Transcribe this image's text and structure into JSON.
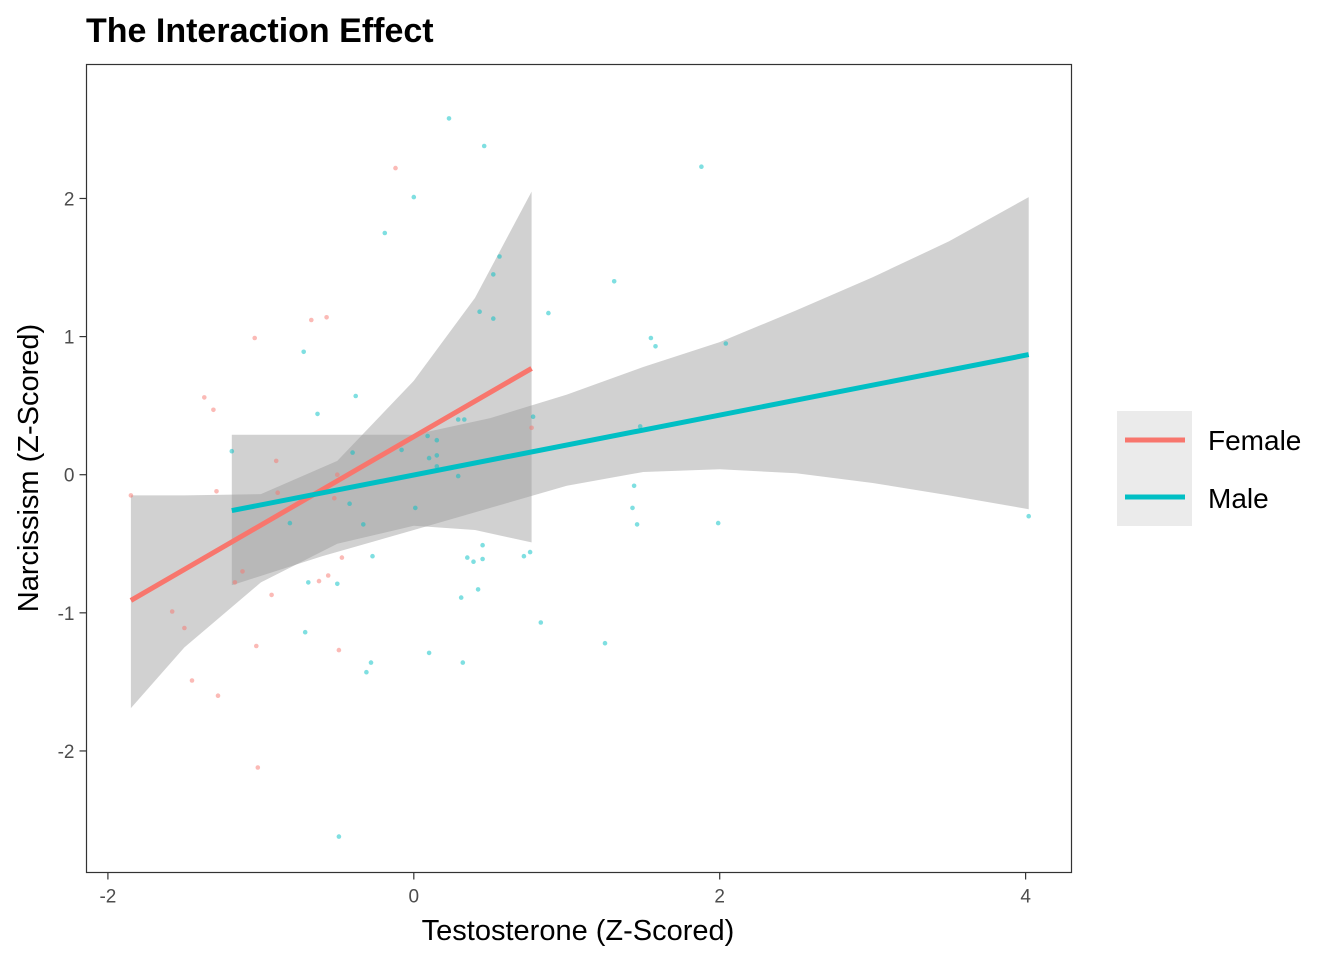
{
  "chart_data": {
    "type": "scatter",
    "title": "The Interaction Effect",
    "xlabel": "Testosterone (Z-Scored)",
    "ylabel": "Narcissism (Z-Scored)",
    "xlim": [
      -2.14,
      4.3
    ],
    "ylim": [
      -2.88,
      2.97
    ],
    "xticks": [
      -2,
      0,
      2,
      4
    ],
    "yticks": [
      -2,
      -1,
      0,
      1,
      2
    ],
    "grid": false,
    "legend_position": "right",
    "series": [
      {
        "name": "Female",
        "color": "#F8766D",
        "points": [
          [
            -1.85,
            -0.15
          ],
          [
            -1.58,
            -0.99
          ],
          [
            -1.5,
            -1.11
          ],
          [
            -1.45,
            -1.49
          ],
          [
            -1.37,
            0.56
          ],
          [
            -1.31,
            0.47
          ],
          [
            -1.29,
            -0.12
          ],
          [
            -1.28,
            -1.6
          ],
          [
            -1.17,
            -0.78
          ],
          [
            -1.12,
            -0.7
          ],
          [
            -1.04,
            0.99
          ],
          [
            -1.03,
            -1.24
          ],
          [
            -1.02,
            -2.12
          ],
          [
            -0.93,
            -0.87
          ],
          [
            -0.9,
            0.1
          ],
          [
            -0.89,
            -0.13
          ],
          [
            -0.67,
            1.12
          ],
          [
            -0.62,
            -0.77
          ],
          [
            -0.57,
            1.14
          ],
          [
            -0.56,
            -0.73
          ],
          [
            -0.52,
            -0.17
          ],
          [
            -0.5,
            0.0
          ],
          [
            -0.49,
            -1.27
          ],
          [
            -0.47,
            -0.6
          ],
          [
            -0.12,
            2.22
          ],
          [
            0.77,
            0.34
          ]
        ],
        "fit": {
          "x": [
            -1.85,
            0.77
          ],
          "y": [
            -0.91,
            0.77
          ]
        },
        "ci": {
          "x": [
            -1.85,
            -1.5,
            -1.0,
            -0.5,
            0.0,
            0.4,
            0.77
          ],
          "lower": [
            -1.69,
            -1.25,
            -0.78,
            -0.5,
            -0.37,
            -0.4,
            -0.49
          ],
          "upper": [
            -0.15,
            -0.15,
            -0.14,
            0.1,
            0.68,
            1.28,
            2.05
          ]
        }
      },
      {
        "name": "Male",
        "color": "#00BFC4",
        "points": [
          [
            -1.19,
            0.17
          ],
          [
            -0.81,
            -0.35
          ],
          [
            -0.72,
            0.89
          ],
          [
            -0.71,
            -1.14
          ],
          [
            -0.69,
            -0.78
          ],
          [
            -0.63,
            0.44
          ],
          [
            -0.5,
            -0.79
          ],
          [
            -0.49,
            -2.62
          ],
          [
            -0.42,
            -0.21
          ],
          [
            -0.4,
            0.16
          ],
          [
            -0.38,
            0.57
          ],
          [
            -0.33,
            -0.36
          ],
          [
            -0.31,
            -1.43
          ],
          [
            -0.28,
            -1.36
          ],
          [
            -0.27,
            -0.59
          ],
          [
            -0.19,
            1.75
          ],
          [
            -0.08,
            0.18
          ],
          [
            0.0,
            2.01
          ],
          [
            0.01,
            -0.24
          ],
          [
            0.09,
            0.28
          ],
          [
            0.1,
            -1.29
          ],
          [
            0.1,
            0.12
          ],
          [
            0.15,
            0.25
          ],
          [
            0.15,
            0.14
          ],
          [
            0.15,
            0.06
          ],
          [
            0.23,
            2.58
          ],
          [
            0.29,
            0.4
          ],
          [
            0.29,
            -0.01
          ],
          [
            0.31,
            -0.89
          ],
          [
            0.32,
            -1.36
          ],
          [
            0.33,
            0.4
          ],
          [
            0.35,
            -0.6
          ],
          [
            0.39,
            -0.63
          ],
          [
            0.42,
            -0.83
          ],
          [
            0.43,
            1.18
          ],
          [
            0.45,
            -0.61
          ],
          [
            0.45,
            -0.51
          ],
          [
            0.46,
            2.38
          ],
          [
            0.52,
            1.13
          ],
          [
            0.52,
            1.45
          ],
          [
            0.56,
            1.58
          ],
          [
            0.72,
            -0.59
          ],
          [
            0.76,
            -0.56
          ],
          [
            0.78,
            0.42
          ],
          [
            0.83,
            -1.07
          ],
          [
            0.88,
            1.17
          ],
          [
            1.25,
            -1.22
          ],
          [
            1.31,
            1.4
          ],
          [
            1.43,
            -0.24
          ],
          [
            1.44,
            -0.08
          ],
          [
            1.46,
            -0.36
          ],
          [
            1.48,
            0.35
          ],
          [
            1.55,
            0.99
          ],
          [
            1.58,
            0.93
          ],
          [
            1.88,
            2.23
          ],
          [
            1.99,
            -0.35
          ],
          [
            2.04,
            0.95
          ],
          [
            4.02,
            -0.3
          ]
        ],
        "fit": {
          "x": [
            -1.19,
            4.02
          ],
          "y": [
            -0.26,
            0.87
          ]
        },
        "ci": {
          "x": [
            -1.19,
            -0.6,
            0.0,
            0.5,
            1.0,
            1.5,
            2.0,
            2.5,
            3.0,
            3.5,
            4.02
          ],
          "lower": [
            -0.8,
            -0.59,
            -0.4,
            -0.24,
            -0.08,
            0.02,
            0.04,
            0.01,
            -0.06,
            -0.15,
            -0.25
          ],
          "upper": [
            0.29,
            0.29,
            0.29,
            0.41,
            0.58,
            0.78,
            0.96,
            1.19,
            1.43,
            1.69,
            2.01
          ]
        }
      }
    ]
  }
}
